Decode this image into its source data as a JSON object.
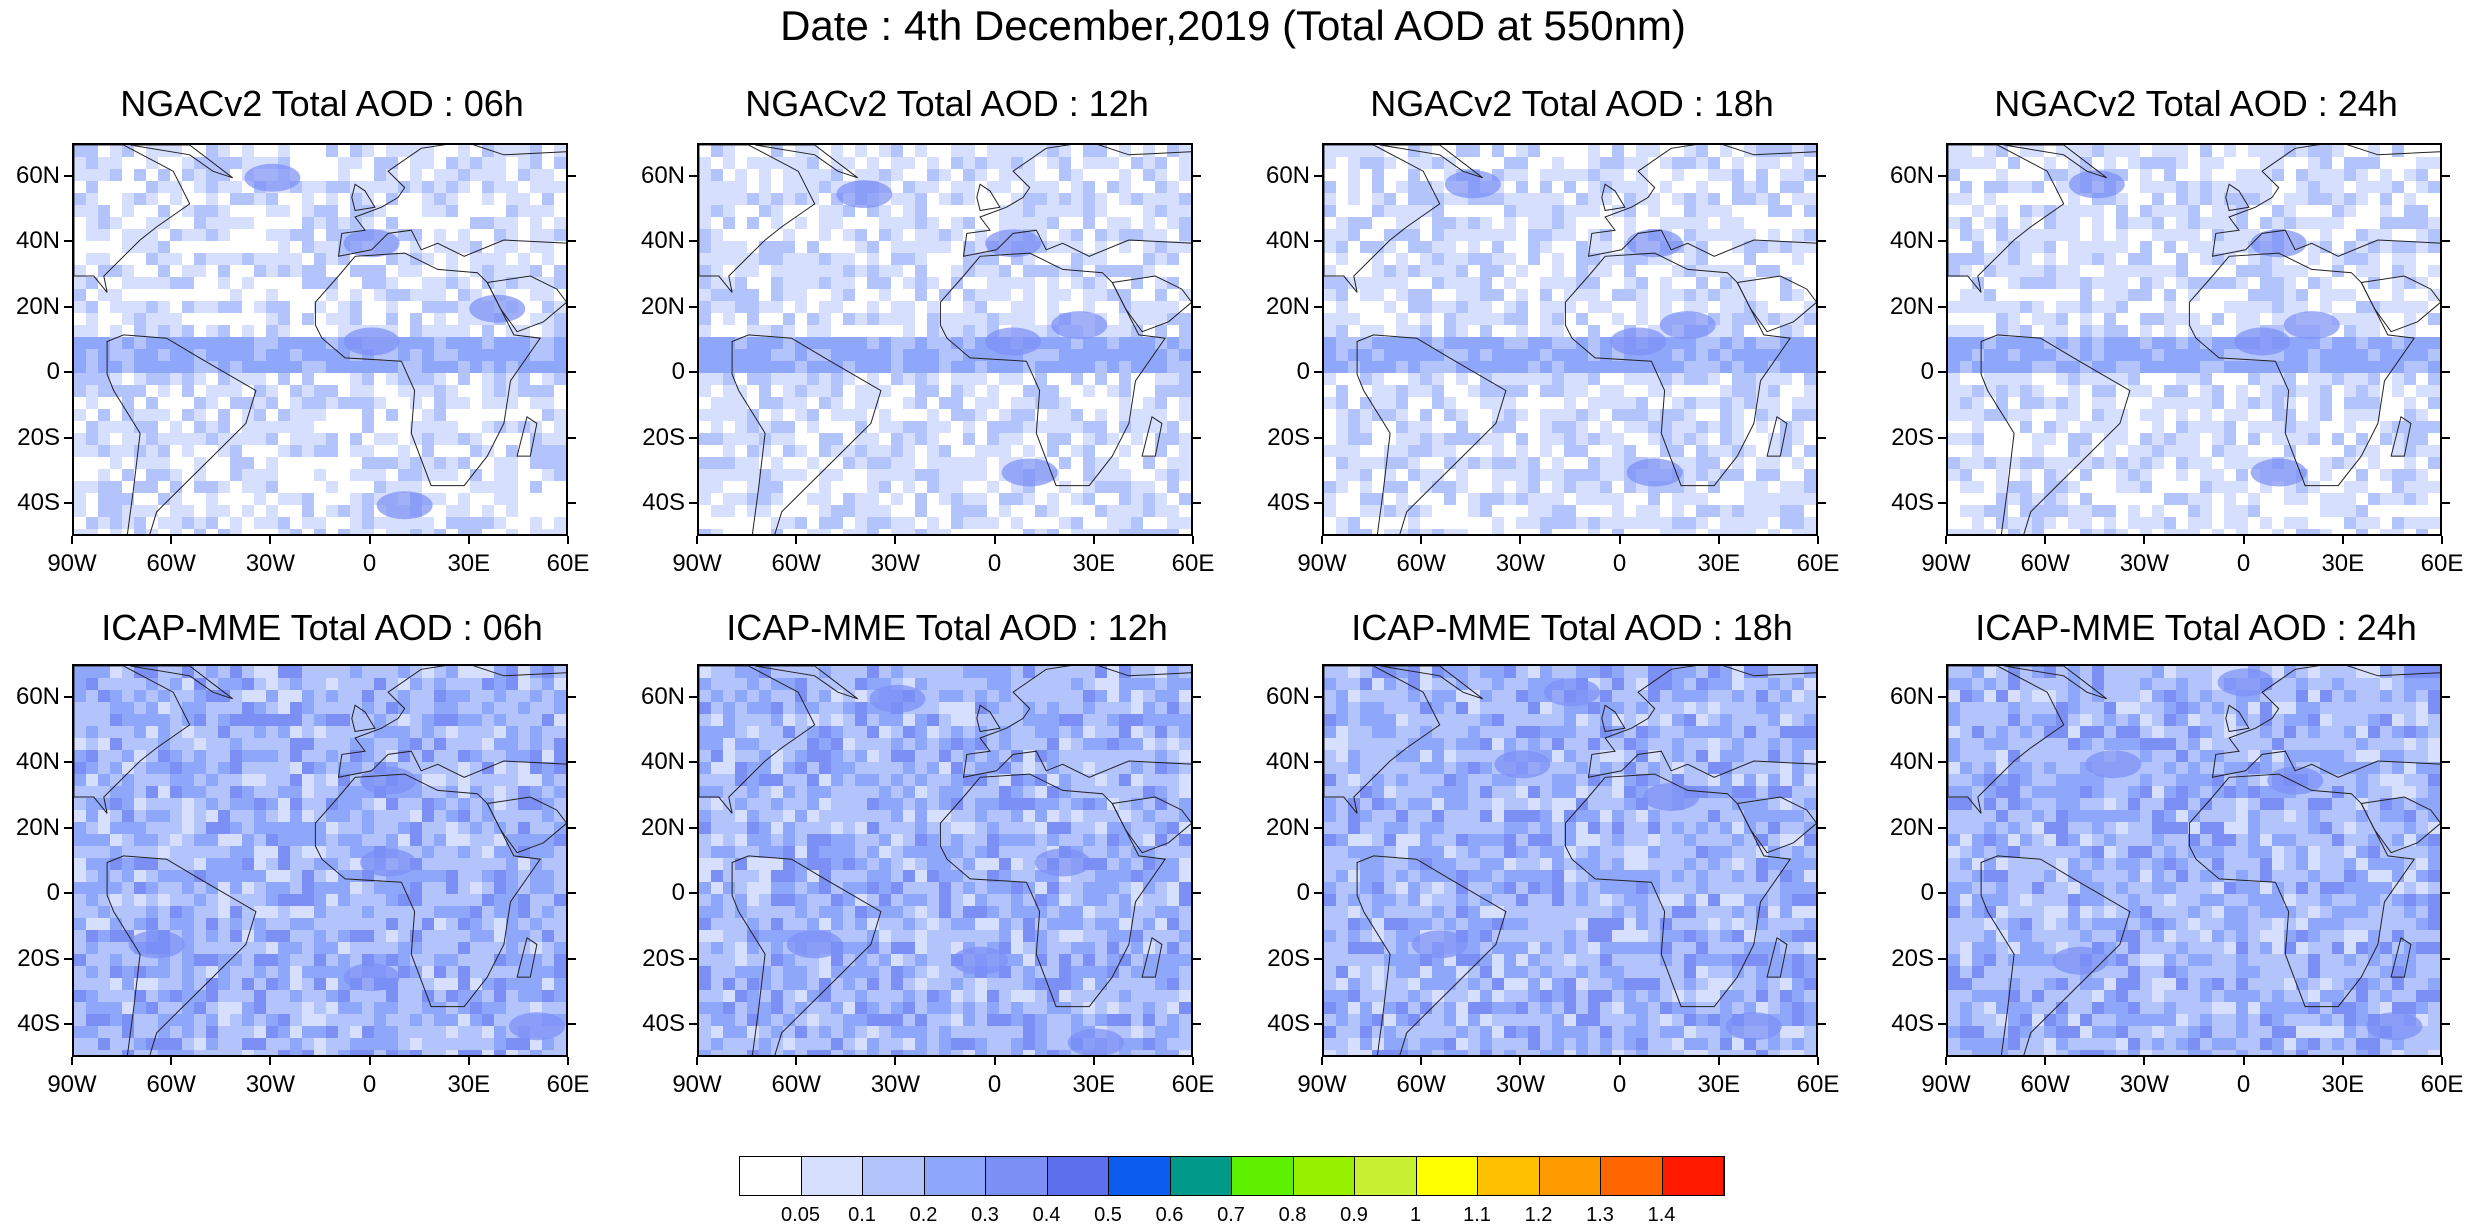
{
  "figure": {
    "title": "Date : 4th December,2019 (Total AOD at 550nm)"
  },
  "panels": [
    {
      "title": "NGACv2 Total AOD : 06h",
      "model": "NGACv2",
      "hour": "06h",
      "hotspots": [
        [
          20,
          38
        ],
        [
          60,
          -30
        ],
        [
          10,
          0
        ],
        [
          -40,
          10
        ],
        [
          40,
          0
        ]
      ]
    },
    {
      "title": "NGACv2 Total AOD : 12h",
      "model": "NGACv2",
      "hour": "12h",
      "hotspots": [
        [
          55,
          -40
        ],
        [
          10,
          5
        ],
        [
          -30,
          10
        ],
        [
          40,
          5
        ],
        [
          15,
          25
        ]
      ]
    },
    {
      "title": "NGACv2 Total AOD : 18h",
      "model": "NGACv2",
      "hour": "18h",
      "hotspots": [
        [
          58,
          -45
        ],
        [
          10,
          5
        ],
        [
          -30,
          10
        ],
        [
          40,
          10
        ],
        [
          15,
          20
        ]
      ]
    },
    {
      "title": "NGACv2 Total AOD : 24h",
      "model": "NGACv2",
      "hour": "24h",
      "hotspots": [
        [
          58,
          -45
        ],
        [
          10,
          5
        ],
        [
          -30,
          10
        ],
        [
          40,
          10
        ],
        [
          15,
          20
        ]
      ]
    },
    {
      "title": "ICAP-MME Total AOD : 06h",
      "model": "ICAP-MME",
      "hour": "06h",
      "hotspots": [
        [
          35,
          5
        ],
        [
          -15,
          -65
        ],
        [
          -25,
          0
        ],
        [
          -40,
          50
        ],
        [
          10,
          5
        ]
      ]
    },
    {
      "title": "ICAP-MME Total AOD : 12h",
      "model": "ICAP-MME",
      "hour": "12h",
      "hotspots": [
        [
          60,
          -30
        ],
        [
          -15,
          -55
        ],
        [
          -20,
          -5
        ],
        [
          -45,
          30
        ],
        [
          10,
          20
        ]
      ]
    },
    {
      "title": "ICAP-MME Total AOD : 18h",
      "model": "ICAP-MME",
      "hour": "18h",
      "hotspots": [
        [
          62,
          -15
        ],
        [
          -15,
          -55
        ],
        [
          -40,
          40
        ],
        [
          40,
          -30
        ],
        [
          30,
          15
        ]
      ]
    },
    {
      "title": "ICAP-MME Total AOD : 24h",
      "model": "ICAP-MME",
      "hour": "24h",
      "hotspots": [
        [
          65,
          0
        ],
        [
          -20,
          -50
        ],
        [
          -40,
          45
        ],
        [
          35,
          15
        ],
        [
          40,
          -40
        ]
      ]
    }
  ],
  "axes": {
    "lat_labels": [
      "60N",
      "40N",
      "20N",
      "0",
      "20S",
      "40S"
    ],
    "lat_values": [
      60,
      40,
      20,
      0,
      -20,
      -40
    ],
    "lon_labels": [
      "90W",
      "60W",
      "30W",
      "0",
      "30E",
      "60E"
    ],
    "lon_values": [
      -90,
      -60,
      -30,
      0,
      30,
      60
    ],
    "lon_range": [
      -90,
      60
    ],
    "lat_range": [
      -50,
      70
    ]
  },
  "colorbar": {
    "labels": [
      "0.05",
      "0.1",
      "0.2",
      "0.3",
      "0.4",
      "0.5",
      "0.6",
      "0.7",
      "0.8",
      "0.9",
      "1",
      "1.1",
      "1.2",
      "1.3",
      "1.4"
    ],
    "colors": [
      "#ffffff",
      "#d6dffd",
      "#b3c3fc",
      "#8fa7fb",
      "#7b8ff5",
      "#5c6fec",
      "#0c5cf0",
      "#00998a",
      "#5ff000",
      "#96f000",
      "#c8f032",
      "#ffff00",
      "#ffc000",
      "#ff9900",
      "#ff6600",
      "#ff1a00"
    ]
  }
}
